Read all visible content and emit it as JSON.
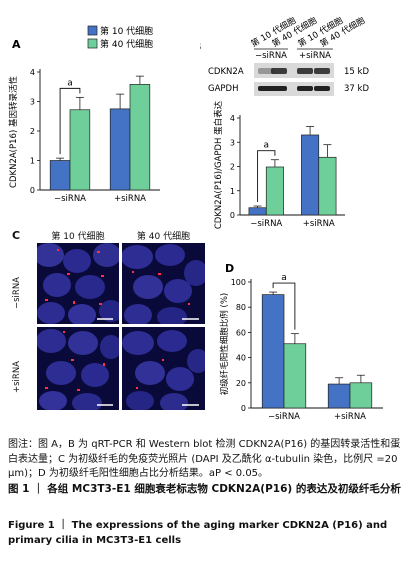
{
  "colors": {
    "blue": "#4472c4",
    "green": "#6fcf9b",
    "cell_bg": "#0a0a3a"
  },
  "panelA": {
    "label": "A",
    "legend": [
      "第 10 代细胞",
      "第 40 代细胞"
    ],
    "ylabel": "CDKN2A(P16) 基因转录活性",
    "sig": "a",
    "chart_data": {
      "type": "bar",
      "categories": [
        "−siRNA",
        "+siRNA"
      ],
      "series": [
        {
          "name": "第 10 代细胞",
          "values": [
            1.0,
            2.75
          ]
        },
        {
          "name": "第 40 代细胞",
          "values": [
            2.72,
            3.58
          ]
        }
      ],
      "errors": [
        [
          0.08,
          0.5
        ],
        [
          0.42,
          0.28
        ]
      ],
      "yticks": [
        "0",
        "1",
        "2",
        "3",
        "4"
      ],
      "ylim": [
        0,
        4
      ]
    }
  },
  "panelB": {
    "label": "B",
    "lanes": [
      "第 10 代细胞",
      "第 40 代细胞",
      "第 10 代细胞",
      "第 40 代细胞"
    ],
    "groups": [
      "−siRNA",
      "+siRNA"
    ],
    "bands": [
      {
        "name": "CDKN2A",
        "kd": "15 kD"
      },
      {
        "name": "GAPDH",
        "kd": "37 kD"
      }
    ],
    "ylabel": "CDKN2A(P16)/GAPDH 蛋白表达",
    "sig": "a",
    "chart_data": {
      "type": "bar",
      "categories": [
        "−siRNA",
        "+siRNA"
      ],
      "series": [
        {
          "name": "第 10 代细胞",
          "values": [
            0.3,
            3.3
          ]
        },
        {
          "name": "第 40 代细胞",
          "values": [
            1.98,
            2.38
          ]
        }
      ],
      "errors": [
        [
          0.07,
          0.35
        ],
        [
          0.3,
          0.52
        ]
      ],
      "yticks": [
        "0",
        "1",
        "2",
        "3",
        "4"
      ],
      "ylim": [
        0,
        4
      ]
    }
  },
  "panelC": {
    "label": "C",
    "cols": [
      "第 10 代细胞",
      "第 40 代细胞"
    ],
    "rows": [
      "−siRNA",
      "+siRNA"
    ]
  },
  "panelD": {
    "label": "D",
    "ylabel": "初级纤毛阳性细胞比例 (%)",
    "sig": "a",
    "chart_data": {
      "type": "bar",
      "categories": [
        "−siRNA",
        "+siRNA"
      ],
      "series": [
        {
          "name": "第 10 代细胞",
          "values": [
            90,
            19
          ]
        },
        {
          "name": "第 40 代细胞",
          "values": [
            51,
            20
          ]
        }
      ],
      "errors": [
        [
          2,
          5
        ],
        [
          8,
          6
        ]
      ],
      "yticks": [
        "0",
        "20",
        "40",
        "60",
        "80",
        "100"
      ],
      "ylim": [
        0,
        100
      ]
    }
  },
  "caption": {
    "notes": "图注：图 A，B 为 qRT-PCR 和 Western blot 检测 CDKN2A(P16) 的基因转录活性和蛋白表达量；C 为初级纤毛的免疫荧光照片 (DAPI 及乙酰化 α-tubulin 染色，比例尺 =20 μm)；D 为初级纤毛阳性细胞占比分析结果。aP < 0.05。",
    "title": "图 1 ｜ 各组 MC3T3-E1 细胞衰老标志物 CDKN2A(P16) 的表达及初级纤毛分析",
    "english": "Figure 1 ｜ The expressions of the aging marker CDKN2A (P16) and primary cilia in MC3T3-E1 cells"
  }
}
